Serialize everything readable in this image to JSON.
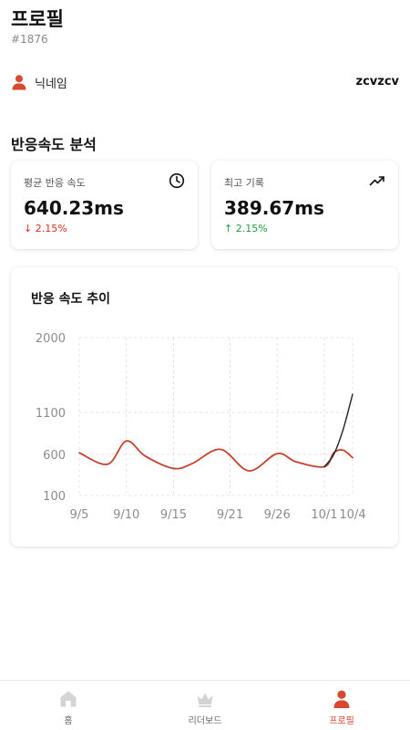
{
  "header": {
    "title": "프로필",
    "user_id": "#1876"
  },
  "profile": {
    "nickname_label": "닉네임",
    "nickname_value": "zcvzcv"
  },
  "section": {
    "title": "반응속도 분석"
  },
  "stats": {
    "average": {
      "label": "평균 반응 속도",
      "value": "640.23ms",
      "change": "2.15%",
      "direction": "down",
      "icon": "clock-icon"
    },
    "best": {
      "label": "최고 기록",
      "value": "389.67ms",
      "change": "2.15%",
      "direction": "up",
      "icon": "trending-up-icon"
    }
  },
  "colors": {
    "accent": "#d9482f",
    "down": "#d93025",
    "up": "#1e9e3e",
    "series_main": "#c8412c",
    "series_recent": "#222222"
  },
  "chart_data": {
    "type": "line",
    "title": "반응 속도 추이",
    "x_ticks": [
      "9/5",
      "9/10",
      "9/15",
      "9/21",
      "9/26",
      "10/1",
      "10/4"
    ],
    "y_ticks": [
      100,
      600,
      1100,
      2000
    ],
    "ylim": [
      100,
      2000
    ],
    "grid": true,
    "series": [
      {
        "x": [
          "9/5",
          "9/8",
          "9/10",
          "9/12",
          "9/15",
          "9/17",
          "9/20",
          "9/23",
          "9/26",
          "9/28",
          "10/1",
          "10/2",
          "10/3",
          "10/4"
        ],
        "values": [
          620,
          480,
          760,
          580,
          430,
          490,
          660,
          400,
          610,
          510,
          450,
          620,
          650,
          560
        ]
      },
      {
        "x": [
          "10/1",
          "10/2",
          "10/3",
          "10/4"
        ],
        "values": [
          450,
          600,
          900,
          1320
        ]
      }
    ]
  },
  "nav": {
    "items": [
      {
        "label": "홈",
        "icon": "home-icon",
        "active": false
      },
      {
        "label": "리더보드",
        "icon": "crown-icon",
        "active": false
      },
      {
        "label": "프로필",
        "icon": "user-icon",
        "active": true
      }
    ]
  }
}
